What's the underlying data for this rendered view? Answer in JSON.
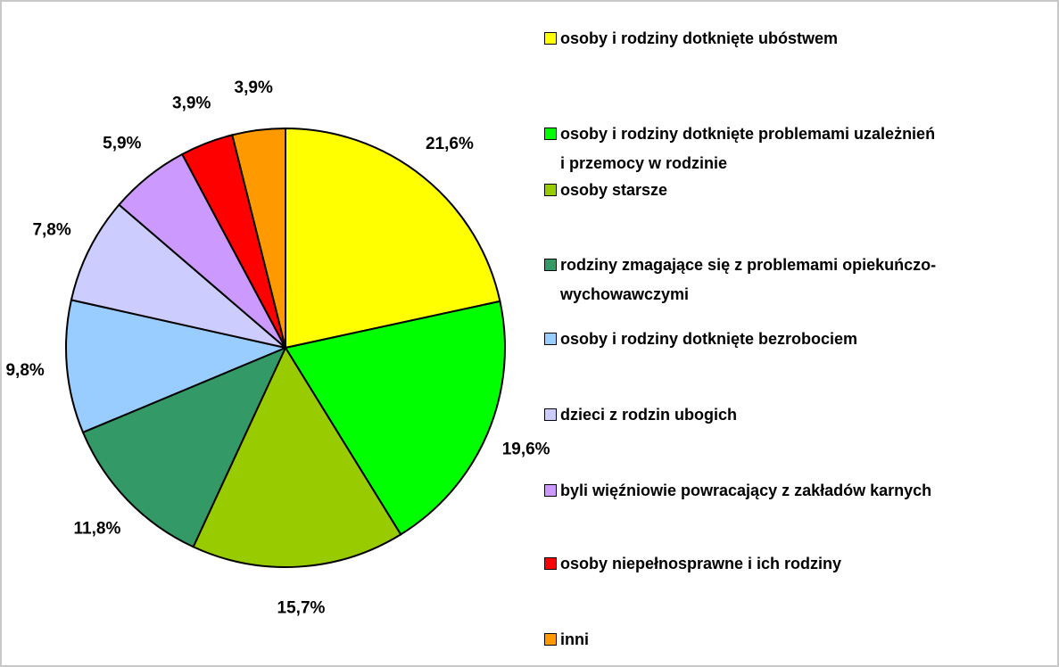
{
  "chart_data": {
    "type": "pie",
    "categories": [
      "osoby i rodziny dotknięte ubóstwem",
      "osoby i rodziny dotknięte problemami uzależnień\ni przemocy w rodzinie",
      "osoby starsze",
      "rodziny zmagające się z problemami opiekuńczo-\nwychowawczymi",
      "osoby i rodziny dotknięte bezrobociem",
      "dzieci z rodzin ubogich",
      "byli więźniowie powracający z zakładów karnych",
      "osoby niepełnosprawne i ich rodziny",
      "inni"
    ],
    "values": [
      21.6,
      19.6,
      15.7,
      11.8,
      9.8,
      7.8,
      5.9,
      3.9,
      3.9
    ],
    "value_labels": [
      "21,6%",
      "19,6%",
      "15,7%",
      "11,8%",
      "9,8%",
      "7,8%",
      "5,9%",
      "3,9%",
      "3,9%"
    ],
    "colors": [
      "#ffff00",
      "#00ff00",
      "#99cc00",
      "#339966",
      "#99ccff",
      "#ccccff",
      "#cc99ff",
      "#ff0000",
      "#ff9900"
    ]
  }
}
